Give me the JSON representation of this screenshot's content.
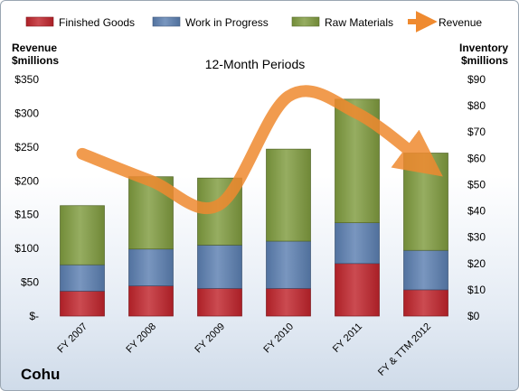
{
  "chart_data": {
    "type": "bar",
    "stacked": true,
    "title": "12-Month Periods",
    "company": "Cohu",
    "left_axis_label": [
      "Revenue",
      "$millions"
    ],
    "right_axis_label": [
      "Inventory",
      "$millions"
    ],
    "categories": [
      "FY 2007",
      "FY 2008",
      "FY 2009",
      "FY 2010",
      "FY 2011",
      "FY & TTM 2012"
    ],
    "series": [
      {
        "name": "Finished Goods",
        "axis": "right",
        "color": "#c0232b",
        "values": [
          9.5,
          11.5,
          10.5,
          10.5,
          20.0,
          10.0
        ]
      },
      {
        "name": "Work in Progress",
        "axis": "right",
        "color": "#5b7fb1",
        "values": [
          10.0,
          14.0,
          16.5,
          18.0,
          15.5,
          15.0
        ]
      },
      {
        "name": "Raw Materials",
        "axis": "right",
        "color": "#7f9b3e",
        "values": [
          22.5,
          27.5,
          25.5,
          35.0,
          47.0,
          37.0
        ]
      },
      {
        "name": "Revenue",
        "axis": "left",
        "type": "line",
        "color": "#ef8a30",
        "values": [
          240,
          200,
          165,
          325,
          300,
          225
        ]
      }
    ],
    "left_axis": {
      "range": [
        0,
        350
      ],
      "ticks": [
        "$-",
        "$50",
        "$100",
        "$150",
        "$200",
        "$250",
        "$300",
        "$350"
      ]
    },
    "right_axis": {
      "range": [
        0,
        90
      ],
      "ticks": [
        "$0",
        "$10",
        "$20",
        "$30",
        "$40",
        "$50",
        "$60",
        "$70",
        "$80",
        "$90"
      ]
    },
    "grid": false,
    "legend_position": "top"
  }
}
